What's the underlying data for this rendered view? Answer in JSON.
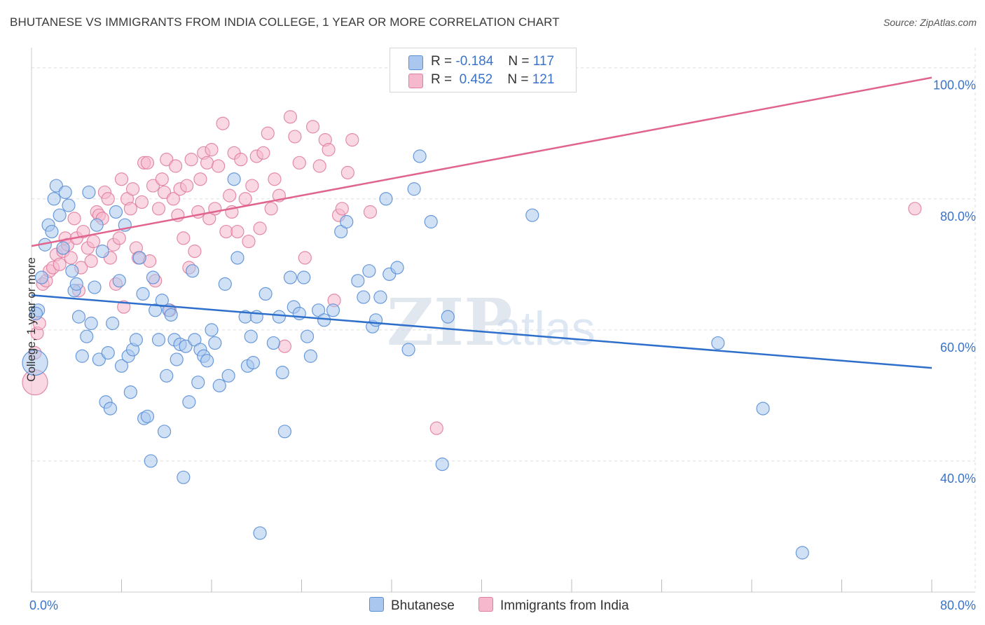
{
  "header": {
    "title": "BHUTANESE VS IMMIGRANTS FROM INDIA COLLEGE, 1 YEAR OR MORE CORRELATION CHART",
    "source": "Source: ZipAtlas.com"
  },
  "legend": {
    "rows": [
      {
        "r_label": "R =",
        "r_value": "-0.184",
        "n_label": "N =",
        "n_value": "117"
      },
      {
        "r_label": "R =",
        "r_value": " 0.452",
        "n_label": "N =",
        "n_value": "121"
      }
    ]
  },
  "bottom_legend": [
    "Bhutanese",
    "Immigrants from India"
  ],
  "colors": {
    "blue_fill": "#aac8ef",
    "blue_stroke": "#5b8fd6",
    "blue_line": "#2e6fcc",
    "pink_fill": "#f5b8cc",
    "pink_stroke": "#e07fa0",
    "pink_line": "#e0648e",
    "axis_text": "#3a73c9",
    "grid": "#dddddd"
  },
  "chart_data": {
    "type": "scatter",
    "title": "BHUTANESE VS IMMIGRANTS FROM INDIA COLLEGE, 1 YEAR OR MORE CORRELATION CHART",
    "xlabel": "",
    "ylabel": "College, 1 year or more",
    "xlim": [
      0,
      80
    ],
    "ylim": [
      20,
      102
    ],
    "x_tick_labels": [
      "0.0%",
      "80.0%"
    ],
    "y_tick_values": [
      40,
      60,
      80,
      100
    ],
    "y_tick_labels": [
      "40.0%",
      "60.0%",
      "80.0%",
      "100.0%"
    ],
    "grid": true,
    "legend_position": "top-center",
    "watermark": "ZIPatlas",
    "series": [
      {
        "name": "Bhutanese",
        "r": -0.184,
        "n": 117,
        "trend": [
          [
            0,
            65.3
          ],
          [
            80,
            54.2
          ]
        ],
        "points": [
          [
            0.0,
            55
          ],
          [
            0.6,
            63
          ],
          [
            0.4,
            62.5
          ],
          [
            0.9,
            68
          ],
          [
            1.2,
            73
          ],
          [
            1.5,
            76
          ],
          [
            1.8,
            75
          ],
          [
            2.0,
            80
          ],
          [
            2.2,
            82
          ],
          [
            2.5,
            77.5
          ],
          [
            2.8,
            72.5
          ],
          [
            3.0,
            81
          ],
          [
            3.3,
            79
          ],
          [
            3.6,
            69
          ],
          [
            3.8,
            66
          ],
          [
            4.0,
            67
          ],
          [
            4.2,
            62
          ],
          [
            4.5,
            56
          ],
          [
            4.9,
            59
          ],
          [
            5.1,
            81
          ],
          [
            5.3,
            61
          ],
          [
            5.6,
            66.5
          ],
          [
            5.8,
            76
          ],
          [
            6.0,
            55.5
          ],
          [
            6.3,
            72
          ],
          [
            6.6,
            49
          ],
          [
            6.8,
            56.5
          ],
          [
            7.0,
            48
          ],
          [
            7.2,
            61
          ],
          [
            7.5,
            78
          ],
          [
            7.8,
            67.5
          ],
          [
            8.0,
            54.5
          ],
          [
            8.3,
            76
          ],
          [
            8.6,
            56
          ],
          [
            8.8,
            50.5
          ],
          [
            9.0,
            57
          ],
          [
            9.3,
            58.5
          ],
          [
            9.6,
            71
          ],
          [
            9.9,
            65.5
          ],
          [
            10.0,
            46.5
          ],
          [
            10.3,
            46.8
          ],
          [
            10.6,
            40
          ],
          [
            10.8,
            68
          ],
          [
            11.0,
            63
          ],
          [
            11.3,
            58.5
          ],
          [
            11.6,
            64.5
          ],
          [
            11.8,
            44.5
          ],
          [
            12.0,
            53
          ],
          [
            12.2,
            63
          ],
          [
            12.4,
            62.3
          ],
          [
            12.7,
            58.5
          ],
          [
            12.9,
            55.5
          ],
          [
            13.2,
            57.8
          ],
          [
            13.5,
            37.5
          ],
          [
            13.7,
            57.5
          ],
          [
            14.0,
            49
          ],
          [
            14.3,
            69
          ],
          [
            14.5,
            58.5
          ],
          [
            14.8,
            52
          ],
          [
            15.0,
            57
          ],
          [
            15.3,
            56
          ],
          [
            15.6,
            55.3
          ],
          [
            16.0,
            60
          ],
          [
            16.3,
            58
          ],
          [
            16.7,
            51.5
          ],
          [
            17.2,
            67
          ],
          [
            17.5,
            53
          ],
          [
            18.0,
            83
          ],
          [
            18.3,
            71
          ],
          [
            19.0,
            62
          ],
          [
            19.2,
            54.5
          ],
          [
            19.5,
            59
          ],
          [
            19.7,
            55
          ],
          [
            20.0,
            62
          ],
          [
            20.3,
            29
          ],
          [
            20.8,
            65.5
          ],
          [
            21.5,
            58
          ],
          [
            22.0,
            62
          ],
          [
            22.3,
            53.5
          ],
          [
            22.5,
            44.5
          ],
          [
            23.0,
            68
          ],
          [
            23.3,
            63.5
          ],
          [
            23.8,
            62.5
          ],
          [
            24.2,
            68
          ],
          [
            24.5,
            59
          ],
          [
            24.8,
            56
          ],
          [
            25.5,
            63
          ],
          [
            26.0,
            61.5
          ],
          [
            26.8,
            63
          ],
          [
            27.5,
            75
          ],
          [
            28.0,
            76.5
          ],
          [
            29.0,
            67.5
          ],
          [
            29.5,
            65
          ],
          [
            30.0,
            69
          ],
          [
            30.3,
            60.5
          ],
          [
            30.6,
            61.5
          ],
          [
            31.0,
            65
          ],
          [
            31.5,
            80
          ],
          [
            31.8,
            68.5
          ],
          [
            32.5,
            69.5
          ],
          [
            33.5,
            57
          ],
          [
            34.0,
            81.5
          ],
          [
            34.5,
            86.5
          ],
          [
            35.5,
            76.5
          ],
          [
            37.0,
            62
          ],
          [
            36.5,
            39.5
          ],
          [
            44.5,
            77.5
          ],
          [
            61.0,
            58
          ],
          [
            65.0,
            48
          ],
          [
            68.5,
            26
          ]
        ]
      },
      {
        "name": "Immigrants from India",
        "r": 0.452,
        "n": 121,
        "trend": [
          [
            0,
            72.8
          ],
          [
            80,
            98.5
          ]
        ],
        "points": [
          [
            0.0,
            52
          ],
          [
            0.3,
            56.5
          ],
          [
            0.5,
            59.5
          ],
          [
            0.7,
            61
          ],
          [
            1.0,
            67
          ],
          [
            1.3,
            67.5
          ],
          [
            1.6,
            69
          ],
          [
            1.9,
            69.5
          ],
          [
            2.2,
            71.5
          ],
          [
            2.5,
            70
          ],
          [
            2.8,
            72
          ],
          [
            3.0,
            74
          ],
          [
            3.2,
            73
          ],
          [
            3.5,
            71
          ],
          [
            3.8,
            77
          ],
          [
            4.0,
            74
          ],
          [
            4.2,
            66
          ],
          [
            4.4,
            69.5
          ],
          [
            4.6,
            75
          ],
          [
            5.0,
            72.5
          ],
          [
            5.3,
            70.5
          ],
          [
            5.5,
            73.5
          ],
          [
            5.8,
            78
          ],
          [
            6.0,
            77.5
          ],
          [
            6.3,
            77
          ],
          [
            6.5,
            81
          ],
          [
            6.8,
            80
          ],
          [
            7.0,
            71
          ],
          [
            7.3,
            73
          ],
          [
            7.5,
            67
          ],
          [
            7.8,
            74
          ],
          [
            8.0,
            83
          ],
          [
            8.2,
            63.5
          ],
          [
            8.5,
            80
          ],
          [
            8.8,
            78.5
          ],
          [
            9.0,
            81.5
          ],
          [
            9.3,
            72.5
          ],
          [
            9.5,
            71
          ],
          [
            9.8,
            79.5
          ],
          [
            10.0,
            85.5
          ],
          [
            10.3,
            85.5
          ],
          [
            10.5,
            70.5
          ],
          [
            10.8,
            82
          ],
          [
            11.0,
            67.5
          ],
          [
            11.3,
            78.5
          ],
          [
            11.6,
            83
          ],
          [
            11.8,
            81
          ],
          [
            12.0,
            86
          ],
          [
            12.3,
            63
          ],
          [
            12.6,
            80
          ],
          [
            12.8,
            85
          ],
          [
            13.0,
            77.5
          ],
          [
            13.2,
            81.5
          ],
          [
            13.5,
            74
          ],
          [
            13.8,
            82
          ],
          [
            14.0,
            69.5
          ],
          [
            14.2,
            86
          ],
          [
            14.5,
            72
          ],
          [
            14.8,
            78
          ],
          [
            15.0,
            83
          ],
          [
            15.3,
            87
          ],
          [
            15.6,
            85.5
          ],
          [
            15.8,
            77
          ],
          [
            16.0,
            87.5
          ],
          [
            16.3,
            78.5
          ],
          [
            16.6,
            85
          ],
          [
            17.0,
            91.5
          ],
          [
            17.3,
            75
          ],
          [
            17.6,
            80.5
          ],
          [
            17.8,
            78
          ],
          [
            18.0,
            87
          ],
          [
            18.3,
            75
          ],
          [
            18.6,
            86
          ],
          [
            19.0,
            80
          ],
          [
            19.3,
            73.5
          ],
          [
            19.6,
            82
          ],
          [
            20.0,
            86.5
          ],
          [
            20.3,
            75.5
          ],
          [
            20.6,
            87
          ],
          [
            21.0,
            90
          ],
          [
            21.3,
            78.5
          ],
          [
            21.6,
            83
          ],
          [
            22.0,
            80.5
          ],
          [
            22.5,
            57.5
          ],
          [
            23.0,
            92.5
          ],
          [
            23.4,
            89.5
          ],
          [
            23.8,
            85.5
          ],
          [
            24.3,
            71
          ],
          [
            25.0,
            91
          ],
          [
            25.6,
            85
          ],
          [
            26.1,
            89
          ],
          [
            26.4,
            87.5
          ],
          [
            26.9,
            64.5
          ],
          [
            27.3,
            77.5
          ],
          [
            27.6,
            78.5
          ],
          [
            28.1,
            84
          ],
          [
            28.5,
            89
          ],
          [
            30.1,
            78
          ],
          [
            36.0,
            45
          ],
          [
            78.5,
            78.5
          ]
        ]
      }
    ]
  }
}
